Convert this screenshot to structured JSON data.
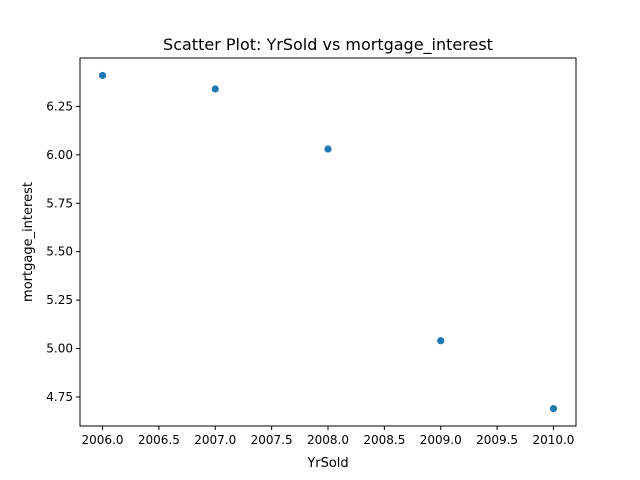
{
  "chart_data": {
    "type": "scatter",
    "title": "Scatter Plot: YrSold vs mortgage_interest",
    "xlabel": "YrSold",
    "ylabel": "mortgage_interest",
    "x": [
      2006,
      2007,
      2008,
      2009,
      2010
    ],
    "y": [
      6.41,
      6.34,
      6.03,
      5.04,
      4.69
    ],
    "xlim": [
      2005.8,
      2010.2
    ],
    "ylim": [
      4.6,
      6.5
    ],
    "xticks": [
      2006.0,
      2006.5,
      2007.0,
      2007.5,
      2008.0,
      2008.5,
      2009.0,
      2009.5,
      2010.0
    ],
    "xtick_labels": [
      "2006.0",
      "2006.5",
      "2007.0",
      "2007.5",
      "2008.0",
      "2008.5",
      "2009.0",
      "2009.5",
      "2010.0"
    ],
    "yticks": [
      4.75,
      5.0,
      5.25,
      5.5,
      5.75,
      6.0,
      6.25
    ],
    "ytick_labels": [
      "4.75",
      "5.00",
      "5.25",
      "5.50",
      "5.75",
      "6.00",
      "6.25"
    ],
    "grid": false,
    "marker_color": "#1f77b4"
  }
}
